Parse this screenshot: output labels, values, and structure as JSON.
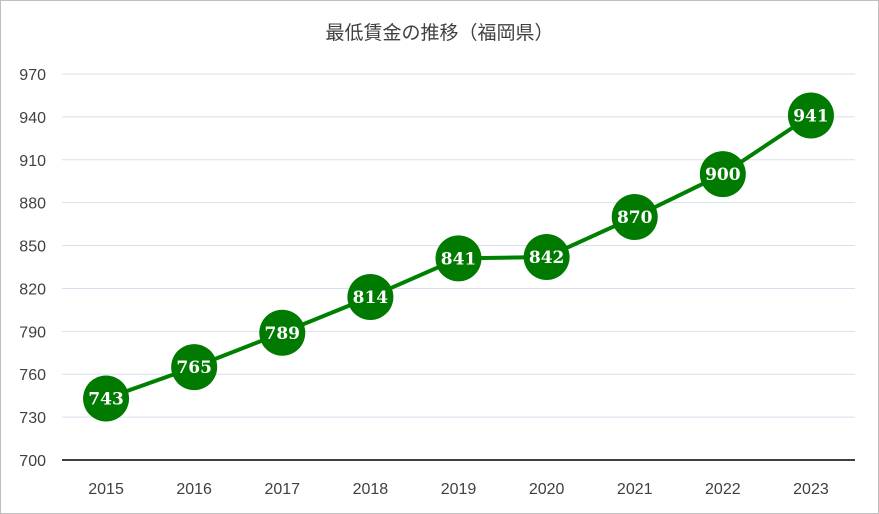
{
  "chart_data": {
    "type": "line",
    "title": "最低賃金の推移（福岡県）",
    "xlabel": "",
    "ylabel": "",
    "categories": [
      "2015",
      "2016",
      "2017",
      "2018",
      "2019",
      "2020",
      "2021",
      "2022",
      "2023"
    ],
    "series": [
      {
        "values": [
          743,
          765,
          789,
          814,
          841,
          842,
          870,
          900,
          941
        ]
      }
    ],
    "ylim": [
      700,
      970
    ],
    "yticks": [
      700,
      730,
      760,
      790,
      820,
      850,
      880,
      910,
      940,
      970
    ],
    "grid": true,
    "legend": "none",
    "data_labels": true,
    "colors": {
      "series": "#008000",
      "marker": "#007a00",
      "grid": "#d6e1ee",
      "axis": "#404040"
    }
  }
}
